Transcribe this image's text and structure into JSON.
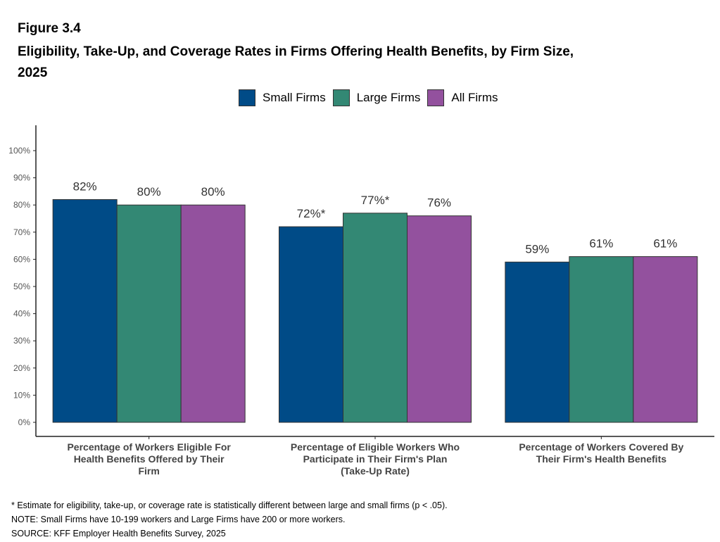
{
  "figure_label": "Figure 3.4",
  "title_line1": "Eligibility, Take-Up, and Coverage Rates in Firms Offering Health Benefits, by Firm Size,",
  "title_line2": "2025",
  "chart_data": {
    "type": "bar",
    "title": "Eligibility, Take-Up, and Coverage Rates in Firms Offering Health Benefits, by Firm Size, 2025",
    "categories": [
      "Percentage of Workers Eligible For Health Benefits Offered by Their Firm",
      "Percentage of Eligible Workers Who Participate in Their Firm's Plan (Take-Up Rate)",
      "Percentage of Workers Covered By Their Firm's Health Benefits"
    ],
    "category_lines": [
      [
        "Percentage of Workers Eligible For",
        "Health Benefits Offered by Their",
        "Firm"
      ],
      [
        "Percentage of Eligible Workers Who",
        "Participate in Their Firm's Plan",
        "(Take-Up Rate)"
      ],
      [
        "Percentage of Workers Covered By",
        "Their Firm's Health Benefits"
      ]
    ],
    "series": [
      {
        "name": "Small Firms",
        "color": "#004b87",
        "values": [
          82,
          72,
          59
        ],
        "labels": [
          "82%",
          "72%*",
          "59%"
        ]
      },
      {
        "name": "Large Firms",
        "color": "#338874",
        "values": [
          80,
          77,
          61
        ],
        "labels": [
          "80%",
          "77%*",
          "61%"
        ]
      },
      {
        "name": "All Firms",
        "color": "#93519e",
        "values": [
          80,
          76,
          61
        ],
        "labels": [
          "80%",
          "76%",
          "61%"
        ]
      }
    ],
    "ylim": [
      0,
      100
    ],
    "yticks": [
      "0%",
      "10%",
      "20%",
      "30%",
      "40%",
      "50%",
      "60%",
      "70%",
      "80%",
      "90%",
      "100%"
    ],
    "xlabel": "",
    "ylabel": "",
    "grid": false,
    "legend": "top"
  },
  "notes": [
    "* Estimate for eligibility, take-up, or coverage rate is statistically different between large and small firms (p < .05).",
    "NOTE: Small Firms have 10-199 workers and Large Firms have 200 or more workers.",
    "SOURCE: KFF Employer Health Benefits Survey, 2025"
  ]
}
